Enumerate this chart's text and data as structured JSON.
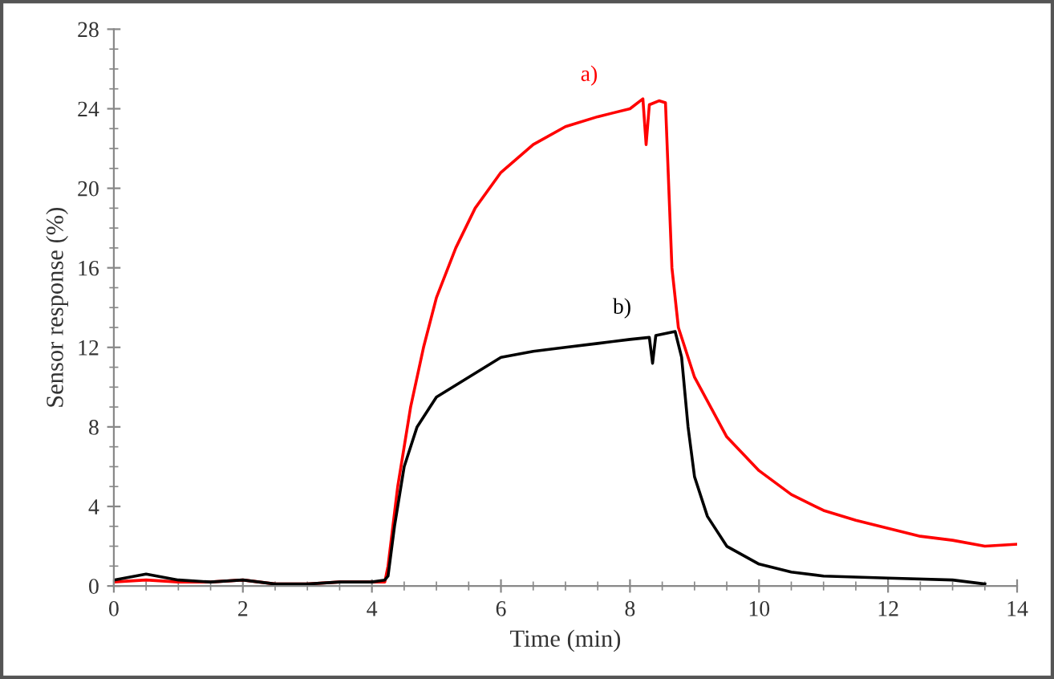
{
  "chart_data": {
    "type": "line",
    "xlabel": "Time (min)",
    "ylabel": "Sensor response (%)",
    "xlim": [
      0,
      14
    ],
    "xticks": [
      0,
      2,
      4,
      6,
      8,
      10,
      12,
      14
    ],
    "ylim": [
      0,
      28
    ],
    "yticks": [
      0,
      4,
      8,
      12,
      16,
      20,
      24,
      28
    ],
    "grid": false,
    "legend": false,
    "marker": "none",
    "line_style": "solid",
    "series": [
      {
        "name": "a)",
        "color": "#ff0000",
        "x": [
          0,
          0.5,
          1,
          1.5,
          2,
          2.5,
          3,
          3.5,
          4,
          4.2,
          4.25,
          4.4,
          4.6,
          4.8,
          5.0,
          5.3,
          5.6,
          6.0,
          6.5,
          7.0,
          7.5,
          8.0,
          8.2,
          8.25,
          8.3,
          8.45,
          8.55,
          8.65,
          8.75,
          9.0,
          9.5,
          10,
          10.5,
          11,
          11.5,
          12,
          12.5,
          13,
          13.5,
          14
        ],
        "values": [
          0.2,
          0.3,
          0.2,
          0.2,
          0.3,
          0.1,
          0.1,
          0.2,
          0.2,
          0.2,
          1,
          5,
          9,
          12,
          14.5,
          17,
          19,
          20.8,
          22.2,
          23.1,
          23.6,
          24.0,
          24.5,
          22.2,
          24.2,
          24.4,
          24.3,
          16,
          13,
          10.5,
          7.5,
          5.8,
          4.6,
          3.8,
          3.3,
          2.9,
          2.5,
          2.3,
          2.0,
          2.1
        ]
      },
      {
        "name": "b)",
        "color": "#000000",
        "x": [
          0,
          0.5,
          1,
          1.5,
          2,
          2.5,
          3,
          3.5,
          4,
          4.2,
          4.25,
          4.35,
          4.5,
          4.7,
          5.0,
          5.5,
          6.0,
          6.5,
          7.0,
          7.5,
          8.0,
          8.3,
          8.35,
          8.4,
          8.7,
          8.8,
          8.9,
          9.0,
          9.2,
          9.5,
          10,
          10.5,
          11,
          12,
          13,
          13.5
        ],
        "values": [
          0.3,
          0.6,
          0.3,
          0.2,
          0.3,
          0.1,
          0.1,
          0.2,
          0.2,
          0.3,
          0.5,
          3,
          6,
          8,
          9.5,
          10.5,
          11.5,
          11.8,
          12,
          12.2,
          12.4,
          12.5,
          11.2,
          12.6,
          12.8,
          11.5,
          8,
          5.5,
          3.5,
          2,
          1.1,
          0.7,
          0.5,
          0.4,
          0.3,
          0.1
        ]
      }
    ]
  }
}
